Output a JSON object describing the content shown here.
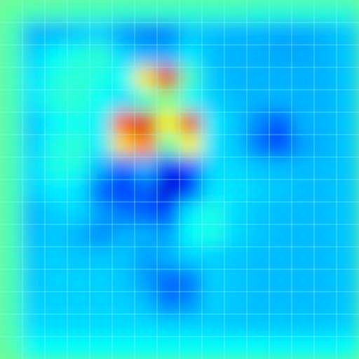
{
  "chart_data": {
    "type": "heatmap",
    "title": "",
    "xlabel": "",
    "ylabel": "",
    "colormap": "jet",
    "value_range": [
      0,
      1
    ],
    "grid": true,
    "grid_color": "#9ff5ff",
    "rows": 16,
    "cols": 16,
    "values": [
      [
        0.47,
        0.45,
        0.45,
        0.44,
        0.44,
        0.43,
        0.43,
        0.43,
        0.43,
        0.43,
        0.43,
        0.42,
        0.42,
        0.42,
        0.42,
        0.42
      ],
      [
        0.45,
        0.3,
        0.3,
        0.32,
        0.33,
        0.28,
        0.25,
        0.25,
        0.32,
        0.31,
        0.3,
        0.3,
        0.29,
        0.29,
        0.3,
        0.32
      ],
      [
        0.45,
        0.33,
        0.38,
        0.4,
        0.42,
        0.34,
        0.3,
        0.3,
        0.36,
        0.31,
        0.3,
        0.3,
        0.29,
        0.29,
        0.3,
        0.32
      ],
      [
        0.45,
        0.35,
        0.4,
        0.42,
        0.4,
        0.38,
        0.65,
        0.9,
        0.44,
        0.32,
        0.3,
        0.3,
        0.3,
        0.3,
        0.3,
        0.32
      ],
      [
        0.45,
        0.35,
        0.41,
        0.42,
        0.38,
        0.34,
        0.42,
        0.5,
        0.38,
        0.33,
        0.31,
        0.3,
        0.3,
        0.3,
        0.3,
        0.32
      ],
      [
        0.45,
        0.32,
        0.37,
        0.39,
        0.36,
        0.8,
        0.92,
        0.62,
        0.9,
        0.36,
        0.32,
        0.26,
        0.2,
        0.3,
        0.3,
        0.32
      ],
      [
        0.45,
        0.33,
        0.4,
        0.42,
        0.36,
        0.66,
        0.75,
        0.45,
        0.62,
        0.35,
        0.32,
        0.24,
        0.18,
        0.28,
        0.3,
        0.32
      ],
      [
        0.45,
        0.34,
        0.4,
        0.4,
        0.3,
        0.22,
        0.3,
        0.12,
        0.2,
        0.34,
        0.34,
        0.32,
        0.31,
        0.31,
        0.31,
        0.32
      ],
      [
        0.45,
        0.33,
        0.36,
        0.35,
        0.22,
        0.18,
        0.22,
        0.08,
        0.15,
        0.35,
        0.35,
        0.33,
        0.32,
        0.31,
        0.31,
        0.32
      ],
      [
        0.45,
        0.3,
        0.33,
        0.34,
        0.28,
        0.24,
        0.22,
        0.18,
        0.36,
        0.4,
        0.34,
        0.32,
        0.31,
        0.31,
        0.31,
        0.32
      ],
      [
        0.45,
        0.31,
        0.32,
        0.3,
        0.26,
        0.3,
        0.3,
        0.28,
        0.38,
        0.4,
        0.34,
        0.32,
        0.31,
        0.31,
        0.31,
        0.32
      ],
      [
        0.45,
        0.32,
        0.33,
        0.32,
        0.32,
        0.32,
        0.28,
        0.3,
        0.33,
        0.33,
        0.32,
        0.31,
        0.31,
        0.31,
        0.31,
        0.32
      ],
      [
        0.45,
        0.32,
        0.33,
        0.33,
        0.33,
        0.32,
        0.28,
        0.22,
        0.24,
        0.33,
        0.32,
        0.31,
        0.31,
        0.31,
        0.31,
        0.32
      ],
      [
        0.45,
        0.33,
        0.33,
        0.33,
        0.33,
        0.33,
        0.31,
        0.24,
        0.26,
        0.33,
        0.32,
        0.31,
        0.31,
        0.31,
        0.31,
        0.32
      ],
      [
        0.45,
        0.34,
        0.34,
        0.34,
        0.34,
        0.34,
        0.34,
        0.33,
        0.33,
        0.33,
        0.32,
        0.32,
        0.32,
        0.32,
        0.32,
        0.33
      ],
      [
        0.46,
        0.38,
        0.38,
        0.38,
        0.38,
        0.38,
        0.38,
        0.38,
        0.38,
        0.38,
        0.38,
        0.38,
        0.37,
        0.37,
        0.37,
        0.38
      ]
    ]
  }
}
